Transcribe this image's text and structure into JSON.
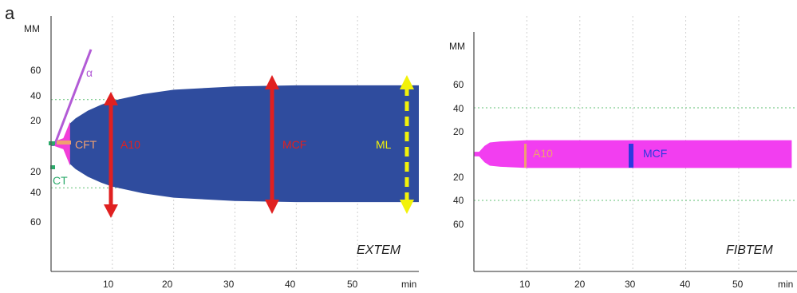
{
  "figure_label": "a",
  "chart_data": [
    {
      "type": "area",
      "name": "EXTEM",
      "panel_label": "EXTEM",
      "y_unit_label": "MM",
      "x_unit_label": "min",
      "x_ticks": [
        10,
        20,
        30,
        40,
        50
      ],
      "y_ticks_upper": [
        60,
        40,
        20
      ],
      "y_ticks_lower": [
        20,
        40,
        60
      ],
      "xlim": [
        0,
        60
      ],
      "ylim": [
        -80,
        80
      ],
      "reference_lines_mm": [
        40,
        -40
      ],
      "amplitude_trace": {
        "x": [
          0,
          1,
          2,
          3,
          4,
          6,
          8,
          10,
          15,
          20,
          30,
          40,
          60
        ],
        "y": [
          2,
          2,
          3,
          18,
          23,
          30,
          35,
          39,
          45,
          49,
          52,
          53,
          53
        ]
      },
      "annotations": [
        {
          "label": "α",
          "color": "#b25bd6"
        },
        {
          "label": "CFT",
          "color": "#f0a070",
          "x": 3,
          "y": 0
        },
        {
          "label": "A10",
          "color": "#e02020",
          "x": 10,
          "y": [
            -41,
            41
          ]
        },
        {
          "label": "MCF",
          "color": "#e02020",
          "x": 36.5,
          "y": [
            -53,
            53
          ]
        },
        {
          "label": "ML",
          "color": "#f2f20a",
          "x": 58,
          "y": [
            -53,
            53
          ]
        },
        {
          "label": "CT",
          "color": "#2aaa6a",
          "x": 0.3,
          "y": -20
        }
      ],
      "colors": {
        "clot": "#2f4c9e",
        "early": "#f23ed8",
        "grid": "#5fbf73"
      }
    },
    {
      "type": "area",
      "name": "FIBTEM",
      "panel_label": "FIBTEM",
      "y_unit_label": "MM",
      "x_unit_label": "min",
      "x_ticks": [
        10,
        20,
        30,
        40,
        50
      ],
      "y_ticks_upper": [
        60,
        40,
        20
      ],
      "y_ticks_lower": [
        20,
        40,
        60
      ],
      "xlim": [
        0,
        60
      ],
      "ylim": [
        -80,
        80
      ],
      "reference_lines_mm": [
        40,
        -40
      ],
      "amplitude_trace": {
        "x": [
          0,
          1,
          2,
          3,
          5,
          10,
          20,
          30,
          60
        ],
        "y": [
          2,
          2,
          7,
          10,
          11,
          12,
          12,
          12,
          12
        ]
      },
      "annotations": [
        {
          "label": "A10",
          "color": "#f0a070",
          "x": 10
        },
        {
          "label": "MCF",
          "color": "#2d39e0",
          "x": 30
        }
      ],
      "colors": {
        "clot": "#f23ef0",
        "grid": "#5fbf73"
      }
    }
  ]
}
